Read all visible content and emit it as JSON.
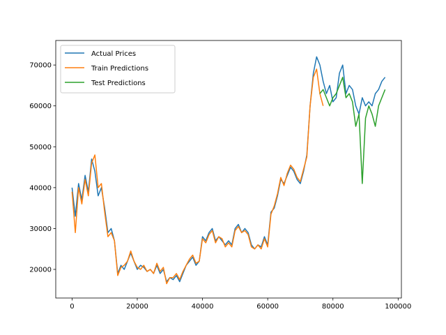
{
  "chart_data": {
    "type": "line",
    "title": "",
    "xlabel": "",
    "ylabel": "",
    "xlim": [
      -5000,
      101000
    ],
    "ylim": [
      13000,
      76000
    ],
    "xticks": [
      0,
      20000,
      40000,
      60000,
      80000,
      100000
    ],
    "xtick_labels": [
      "0",
      "20000",
      "40000",
      "60000",
      "80000",
      "100000"
    ],
    "yticks": [
      20000,
      30000,
      40000,
      50000,
      60000,
      70000
    ],
    "ytick_labels": [
      "20000",
      "30000",
      "40000",
      "50000",
      "60000",
      "70000"
    ],
    "grid": false,
    "legend_position": "upper-left",
    "series": [
      {
        "name": "Actual Prices",
        "color": "#1f77b4",
        "x": [
          0,
          1000,
          2000,
          3000,
          4000,
          5000,
          6000,
          7000,
          8000,
          9000,
          10000,
          11000,
          12000,
          13000,
          14000,
          15000,
          16000,
          17000,
          18000,
          19000,
          20000,
          21000,
          22000,
          23000,
          24000,
          25000,
          26000,
          27000,
          28000,
          29000,
          30000,
          31000,
          32000,
          33000,
          34000,
          35000,
          36000,
          37000,
          38000,
          39000,
          40000,
          41000,
          42000,
          43000,
          44000,
          45000,
          46000,
          47000,
          48000,
          49000,
          50000,
          51000,
          52000,
          53000,
          54000,
          55000,
          56000,
          57000,
          58000,
          59000,
          60000,
          61000,
          62000,
          63000,
          64000,
          65000,
          66000,
          67000,
          68000,
          69000,
          70000,
          71000,
          72000,
          73000,
          74000,
          75000,
          76000,
          77000,
          78000,
          79000,
          80000,
          81000,
          82000,
          83000,
          84000,
          85000,
          86000,
          87000,
          88000,
          89000,
          90000,
          91000,
          92000,
          93000,
          94000,
          95000,
          96000
        ],
        "y": [
          40000,
          33000,
          41000,
          37000,
          43000,
          39000,
          47000,
          44000,
          38000,
          40000,
          35000,
          29000,
          30000,
          27000,
          19000,
          21000,
          20000,
          22000,
          24000,
          22000,
          20000,
          21000,
          20500,
          19500,
          20000,
          19000,
          21000,
          19000,
          20000,
          17000,
          18000,
          17500,
          18500,
          17000,
          19000,
          21000,
          22000,
          23000,
          21000,
          22000,
          28000,
          27000,
          29000,
          30000,
          27000,
          28000,
          27000,
          26000,
          27000,
          26000,
          30000,
          31000,
          29000,
          30000,
          29000,
          26000,
          25000,
          26000,
          25500,
          28000,
          26000,
          34000,
          35000,
          38000,
          42000,
          41000,
          43000,
          45000,
          44000,
          42000,
          41000,
          44000,
          48000,
          60000,
          68000,
          72000,
          70000,
          66000,
          63000,
          65000,
          61000,
          62000,
          68000,
          70000,
          63000,
          65000,
          64000,
          60000,
          58000,
          62000,
          60000,
          61000,
          60000,
          63000,
          64000,
          66000,
          67000
        ]
      },
      {
        "name": "Train Predictions",
        "color": "#ff7f0e",
        "x": [
          0,
          1000,
          2000,
          3000,
          4000,
          5000,
          6000,
          7000,
          8000,
          9000,
          10000,
          11000,
          12000,
          13000,
          14000,
          15000,
          16000,
          17000,
          18000,
          19000,
          20000,
          21000,
          22000,
          23000,
          24000,
          25000,
          26000,
          27000,
          28000,
          29000,
          30000,
          31000,
          32000,
          33000,
          34000,
          35000,
          36000,
          37000,
          38000,
          39000,
          40000,
          41000,
          42000,
          43000,
          44000,
          45000,
          46000,
          47000,
          48000,
          49000,
          50000,
          51000,
          52000,
          53000,
          54000,
          55000,
          56000,
          57000,
          58000,
          59000,
          60000,
          61000,
          62000,
          63000,
          64000,
          65000,
          66000,
          67000,
          68000,
          69000,
          70000,
          71000,
          72000,
          73000,
          74000,
          75000,
          76000,
          77000
        ],
        "y": [
          39000,
          29000,
          40000,
          36000,
          42000,
          38000,
          46000,
          48000,
          40000,
          41000,
          34000,
          28000,
          29000,
          27000,
          18500,
          20500,
          21000,
          22000,
          24500,
          22000,
          20500,
          20000,
          21000,
          19500,
          20000,
          19000,
          21500,
          19500,
          20500,
          16500,
          18000,
          18000,
          19000,
          17500,
          19500,
          21000,
          22500,
          23500,
          21500,
          22000,
          27500,
          26500,
          28500,
          29500,
          26500,
          28000,
          27500,
          25500,
          26500,
          25500,
          29500,
          30500,
          29000,
          29500,
          28500,
          25500,
          25000,
          26000,
          25000,
          27500,
          25500,
          33500,
          35500,
          38500,
          42500,
          40500,
          43500,
          45500,
          44500,
          42500,
          41500,
          44500,
          47500,
          60000,
          67000,
          69000,
          63000,
          60000
        ]
      },
      {
        "name": "Test Predictions",
        "color": "#2ca02c",
        "x": [
          76000,
          77000,
          78000,
          79000,
          80000,
          81000,
          82000,
          83000,
          84000,
          85000,
          86000,
          87000,
          88000,
          89000,
          90000,
          91000,
          92000,
          93000,
          94000,
          95000,
          96000
        ],
        "y": [
          63000,
          64000,
          62000,
          60000,
          62000,
          63000,
          65000,
          67000,
          62000,
          63000,
          61000,
          55000,
          58000,
          41000,
          57000,
          60000,
          58000,
          55000,
          60000,
          62000,
          64000
        ]
      }
    ]
  }
}
